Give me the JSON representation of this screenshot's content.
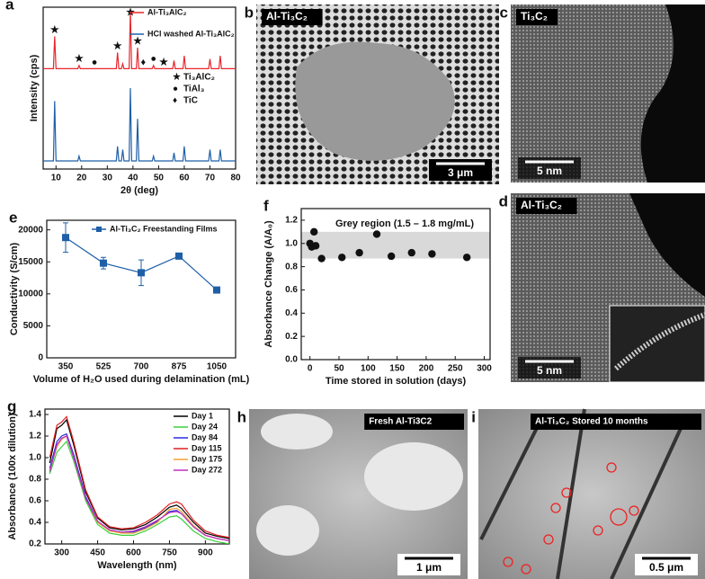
{
  "chart_data": [
    {
      "type": "line",
      "panel": "a",
      "xlabel": "2θ (deg)",
      "ylabel": "Intensity (cps)",
      "x": [
        5,
        9,
        9.5,
        10,
        18.5,
        19,
        19.5,
        33.5,
        34,
        34.5,
        35.5,
        36,
        36.5,
        38.5,
        39,
        39.5,
        41.3,
        41.8,
        42.3,
        47.5,
        48,
        48.5,
        55.5,
        56,
        56.5,
        59.5,
        60,
        60.5,
        69.5,
        70,
        70.5,
        73.5,
        74,
        74.5,
        80
      ],
      "series": [
        {
          "name": "Al-Ti₃AlC₂",
          "color": "#e8262b",
          "values": [
            62,
            62,
            82,
            62,
            62,
            64,
            62,
            62,
            72,
            62,
            62,
            65,
            62,
            62,
            98,
            62,
            62,
            75,
            62,
            62,
            64,
            62,
            62,
            67,
            62,
            62,
            70,
            62,
            62,
            68,
            62,
            62,
            70,
            62,
            62
          ]
        },
        {
          "name": "HCl washed Al-Ti₃AlC₂",
          "color": "#1f5fa8",
          "values": [
            5,
            5,
            42,
            5,
            5,
            8,
            5,
            5,
            14,
            5,
            5,
            12,
            5,
            5,
            50,
            5,
            5,
            31,
            5,
            5,
            8,
            5,
            5,
            10,
            5,
            5,
            14,
            5,
            5,
            12,
            5,
            5,
            12,
            5,
            5
          ]
        }
      ],
      "xlim": [
        5,
        80
      ],
      "xticks": [
        10,
        20,
        30,
        40,
        50,
        60,
        70,
        80
      ],
      "ylim": [
        0,
        100
      ],
      "peak_markers": [
        {
          "x": 9.5,
          "symbol": "★"
        },
        {
          "x": 19,
          "symbol": "★"
        },
        {
          "x": 25,
          "symbol": "●"
        },
        {
          "x": 34,
          "symbol": "★"
        },
        {
          "x": 39,
          "symbol": "★"
        },
        {
          "x": 41.8,
          "symbol": "★"
        },
        {
          "x": 44,
          "symbol": "♦"
        },
        {
          "x": 48,
          "symbol": "●"
        },
        {
          "x": 52,
          "symbol": "★"
        }
      ],
      "marker_legend": [
        {
          "symbol": "★",
          "label": "Ti₃AlC₂"
        },
        {
          "symbol": "●",
          "label": "TiAl₃"
        },
        {
          "symbol": "♦",
          "label": "TiC"
        }
      ]
    },
    {
      "type": "errorline",
      "panel": "e",
      "xlabel": "Volume of H₂O used during delamination (mL)",
      "ylabel": "Conductivity (S/cm)",
      "categories": [
        "350",
        "525",
        "700",
        "875",
        "1050"
      ],
      "series": [
        {
          "name": "Al-Ti₃C₂ Freestanding Films",
          "color": "#1f5fa8",
          "values": [
            18800,
            14800,
            13300,
            15900,
            10600
          ],
          "errors": [
            2300,
            900,
            2000,
            0,
            0
          ]
        }
      ],
      "ylim": [
        0,
        21500
      ],
      "yticks": [
        0,
        5000,
        10000,
        15000,
        20000
      ]
    },
    {
      "type": "scatter",
      "panel": "f",
      "xlabel": "Time stored in solution (days)",
      "ylabel": "Absorbance Change (A/A₀)",
      "x": [
        0,
        3,
        7,
        10,
        20,
        55,
        85,
        115,
        140,
        175,
        210,
        270
      ],
      "values": [
        1.0,
        0.97,
        1.1,
        0.98,
        0.87,
        0.88,
        0.92,
        1.08,
        0.89,
        0.92,
        0.91,
        0.88
      ],
      "color": "#111111",
      "band": [
        0.87,
        1.1
      ],
      "band_label": "Grey region (1.5 – 1.8 mg/mL)",
      "xlim": [
        -15,
        310
      ],
      "xticks": [
        0,
        50,
        100,
        150,
        200,
        250,
        300
      ],
      "ylim": [
        0,
        1.3
      ],
      "yticks": [
        {
          "value": 0,
          "label": "0.0"
        },
        0.2,
        0.4,
        0.6,
        0.8,
        {
          "value": 1,
          "label": "1.0"
        },
        1.2
      ]
    },
    {
      "type": "line",
      "panel": "g",
      "xlabel": "Wavelength (nm)",
      "ylabel": "Absorbance (100x dilution)",
      "x": [
        250,
        280,
        300,
        320,
        350,
        400,
        450,
        500,
        550,
        600,
        650,
        700,
        750,
        780,
        800,
        850,
        900,
        950,
        1000
      ],
      "series": [
        {
          "name": "Day 1",
          "color": "#000000",
          "values": [
            0.95,
            1.27,
            1.3,
            1.35,
            1.12,
            0.68,
            0.44,
            0.35,
            0.33,
            0.34,
            0.38,
            0.45,
            0.54,
            0.56,
            0.53,
            0.4,
            0.3,
            0.27,
            0.25
          ]
        },
        {
          "name": "Day 24",
          "color": "#3ad13a",
          "values": [
            0.85,
            1.05,
            1.1,
            1.15,
            0.97,
            0.6,
            0.38,
            0.3,
            0.28,
            0.28,
            0.32,
            0.38,
            0.45,
            0.46,
            0.43,
            0.32,
            0.25,
            0.22,
            0.2
          ]
        },
        {
          "name": "Day 84",
          "color": "#2a2ae0",
          "values": [
            0.9,
            1.15,
            1.2,
            1.22,
            1.03,
            0.64,
            0.41,
            0.33,
            0.31,
            0.31,
            0.35,
            0.41,
            0.5,
            0.51,
            0.48,
            0.36,
            0.28,
            0.25,
            0.23
          ]
        },
        {
          "name": "Day 115",
          "color": "#e02020",
          "values": [
            1.0,
            1.3,
            1.33,
            1.38,
            1.15,
            0.7,
            0.45,
            0.36,
            0.34,
            0.35,
            0.4,
            0.47,
            0.57,
            0.59,
            0.57,
            0.42,
            0.32,
            0.28,
            0.26
          ]
        },
        {
          "name": "Day 175",
          "color": "#f0a030",
          "values": [
            0.88,
            1.1,
            1.17,
            1.2,
            1.0,
            0.62,
            0.4,
            0.32,
            0.3,
            0.3,
            0.34,
            0.4,
            0.52,
            0.53,
            0.5,
            0.37,
            0.28,
            0.25,
            0.23
          ]
        },
        {
          "name": "Day 272",
          "color": "#c030c0",
          "values": [
            0.87,
            1.12,
            1.18,
            1.2,
            1.0,
            0.62,
            0.41,
            0.33,
            0.31,
            0.32,
            0.36,
            0.42,
            0.49,
            0.5,
            0.48,
            0.36,
            0.28,
            0.25,
            0.23
          ]
        }
      ],
      "xlim": [
        230,
        1000
      ],
      "xticks": [
        300,
        450,
        600,
        750,
        900
      ],
      "ylim": [
        0.2,
        1.45
      ],
      "yticks": [
        0.2,
        0.4,
        0.6,
        0.8,
        {
          "value": 1,
          "label": "1.0"
        },
        1.2,
        1.4
      ]
    }
  ],
  "images": [
    {
      "panel": "b",
      "label": "Al-Ti₃C₂",
      "scale_bar": "3 μm"
    },
    {
      "panel": "c",
      "label": "Ti₃C₂",
      "scale_bar": "5 nm"
    },
    {
      "panel": "d",
      "label": "Al-Ti₃C₂",
      "scale_bar": "5 nm"
    },
    {
      "panel": "h",
      "label": "Fresh Al-Ti3C2",
      "scale_bar": "1 μm"
    },
    {
      "panel": "i",
      "label": "Al-Ti₃C₂ Stored 10 months",
      "scale_bar": "0.5 μm"
    }
  ]
}
